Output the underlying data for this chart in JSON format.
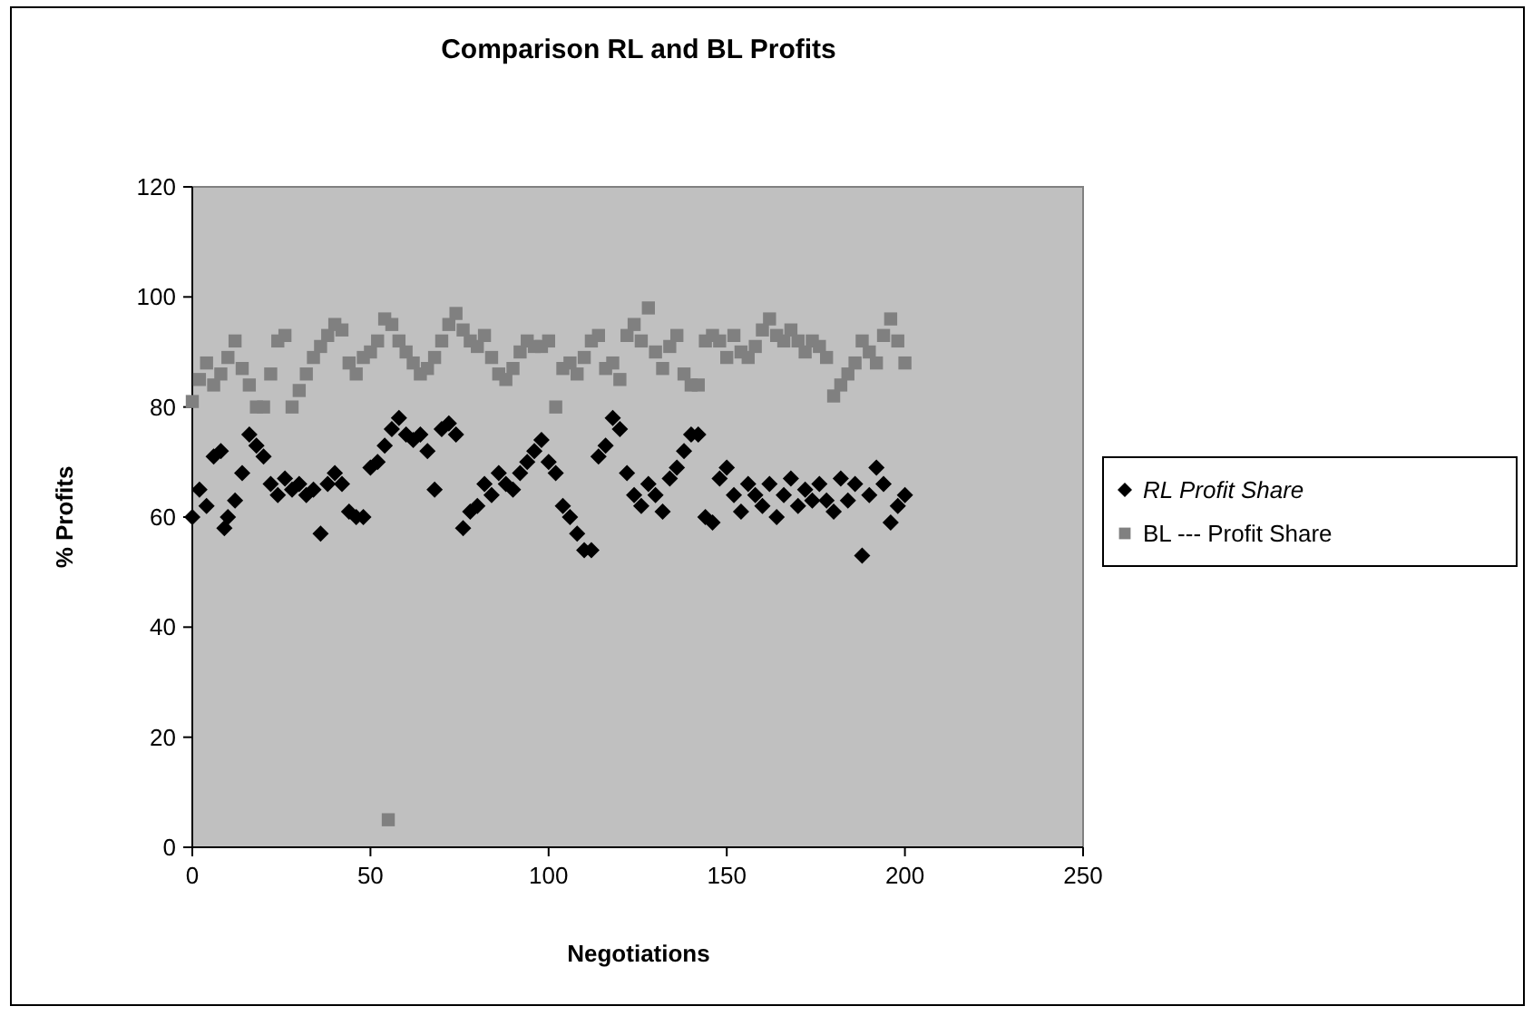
{
  "chart_data": {
    "type": "scatter",
    "title": "Comparison RL and BL Profits",
    "xlabel": "Negotiations",
    "ylabel": "% Profits",
    "xlim": [
      0,
      250
    ],
    "xticks": [
      0,
      50,
      100,
      150,
      200,
      250
    ],
    "ylim": [
      0,
      120
    ],
    "yticks": [
      0,
      20,
      40,
      60,
      80,
      100,
      120
    ],
    "grid": false,
    "legend": "right",
    "series": [
      {
        "name": "RL Profit Share",
        "color": "#000000",
        "marker": "diamond",
        "x": [
          0,
          2,
          4,
          6,
          8,
          9,
          10,
          12,
          14,
          16,
          18,
          20,
          22,
          24,
          26,
          28,
          30,
          32,
          34,
          36,
          38,
          40,
          42,
          44,
          46,
          48,
          50,
          52,
          54,
          56,
          58,
          60,
          62,
          64,
          66,
          68,
          70,
          72,
          74,
          76,
          78,
          80,
          82,
          84,
          86,
          88,
          90,
          92,
          94,
          96,
          98,
          100,
          102,
          104,
          106,
          108,
          110,
          112,
          114,
          116,
          118,
          120,
          122,
          124,
          126,
          128,
          130,
          132,
          134,
          136,
          138,
          140,
          142,
          144,
          146,
          148,
          150,
          152,
          154,
          156,
          158,
          160,
          162,
          164,
          166,
          168,
          170,
          172,
          174,
          176,
          178,
          180,
          182,
          184,
          186,
          188,
          190,
          192,
          194,
          196,
          198,
          200
        ],
        "values": [
          60,
          65,
          62,
          71,
          72,
          58,
          60,
          63,
          68,
          75,
          73,
          71,
          66,
          64,
          67,
          65,
          66,
          64,
          65,
          57,
          66,
          68,
          66,
          61,
          60,
          60,
          69,
          70,
          73,
          76,
          78,
          75,
          74,
          75,
          72,
          65,
          76,
          77,
          75,
          58,
          61,
          62,
          66,
          64,
          68,
          66,
          65,
          68,
          70,
          72,
          74,
          70,
          68,
          62,
          60,
          57,
          54,
          54,
          71,
          73,
          78,
          76,
          68,
          64,
          62,
          66,
          64,
          61,
          67,
          69,
          72,
          75,
          75,
          60,
          59,
          67,
          69,
          64,
          61,
          66,
          64,
          62,
          66,
          60,
          64,
          67,
          62,
          65,
          63,
          66,
          63,
          61,
          67,
          63,
          66,
          53,
          64,
          69,
          66,
          59,
          62,
          64
        ]
      },
      {
        "name": "BL --- Profit Share",
        "color": "#808080",
        "marker": "square",
        "x": [
          0,
          2,
          4,
          6,
          8,
          10,
          12,
          14,
          16,
          18,
          20,
          22,
          24,
          26,
          28,
          30,
          32,
          34,
          36,
          38,
          40,
          42,
          44,
          46,
          48,
          50,
          52,
          54,
          55,
          56,
          58,
          60,
          62,
          64,
          66,
          68,
          70,
          72,
          74,
          76,
          78,
          80,
          82,
          84,
          86,
          88,
          90,
          92,
          94,
          96,
          98,
          100,
          102,
          104,
          106,
          108,
          110,
          112,
          114,
          116,
          118,
          120,
          122,
          124,
          126,
          128,
          130,
          132,
          134,
          136,
          138,
          140,
          142,
          144,
          146,
          148,
          150,
          152,
          154,
          156,
          158,
          160,
          162,
          164,
          166,
          168,
          170,
          172,
          174,
          176,
          178,
          180,
          182,
          184,
          186,
          188,
          190,
          192,
          194,
          196,
          198,
          200
        ],
        "values": [
          81,
          85,
          88,
          84,
          86,
          89,
          92,
          87,
          84,
          80,
          80,
          86,
          92,
          93,
          80,
          83,
          86,
          89,
          91,
          93,
          95,
          94,
          88,
          86,
          89,
          90,
          92,
          96,
          5,
          95,
          92,
          90,
          88,
          86,
          87,
          89,
          92,
          95,
          97,
          94,
          92,
          91,
          93,
          89,
          86,
          85,
          87,
          90,
          92,
          91,
          91,
          92,
          80,
          87,
          88,
          86,
          89,
          92,
          93,
          87,
          88,
          85,
          93,
          95,
          92,
          98,
          90,
          87,
          91,
          93,
          86,
          84,
          84,
          92,
          93,
          92,
          89,
          93,
          90,
          89,
          91,
          94,
          96,
          93,
          92,
          94,
          92,
          90,
          92,
          91,
          89,
          82,
          84,
          86,
          88,
          92,
          90,
          88,
          93,
          96,
          92,
          88
        ]
      }
    ]
  }
}
